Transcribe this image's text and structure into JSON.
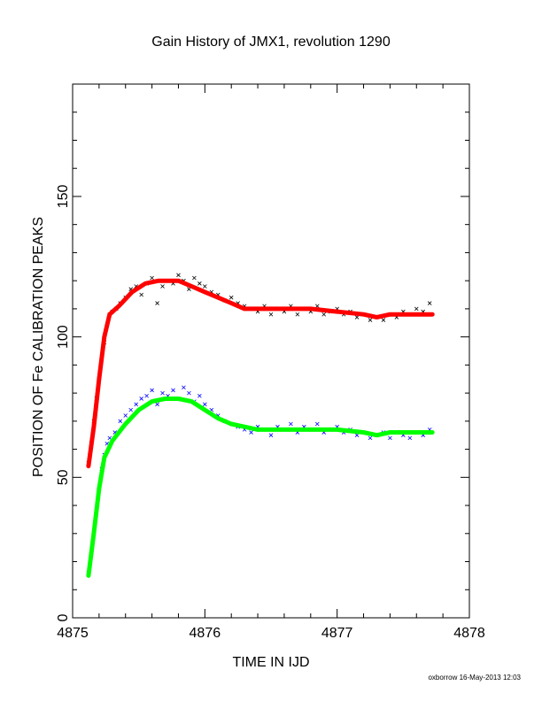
{
  "chart_data": {
    "type": "scatter",
    "title": "Gain History of JMX1, revolution 1290",
    "xlabel": "TIME IN IJD",
    "ylabel": "POSITION OF Fe CALIBRATION PEAKS",
    "xlim": [
      4875,
      4878
    ],
    "ylim": [
      0,
      190
    ],
    "x_ticks": [
      "4875",
      "4876",
      "4877",
      "4878"
    ],
    "y_ticks": [
      "0",
      "50",
      "100",
      "150"
    ],
    "footer": "oxborrow 16-May-2013 12:03",
    "series": [
      {
        "kind": "scatter",
        "color": "#000000",
        "marker": "x",
        "points": [
          [
            4875.12,
            55
          ],
          [
            4875.14,
            62
          ],
          [
            4875.16,
            70
          ],
          [
            4875.18,
            78
          ],
          [
            4875.2,
            85
          ],
          [
            4875.22,
            92
          ],
          [
            4875.24,
            98
          ],
          [
            4875.26,
            104
          ],
          [
            4875.28,
            108
          ],
          [
            4875.3,
            109
          ],
          [
            4875.33,
            110
          ],
          [
            4875.36,
            112
          ],
          [
            4875.4,
            114
          ],
          [
            4875.44,
            117
          ],
          [
            4875.48,
            118
          ],
          [
            4875.52,
            115
          ],
          [
            4875.56,
            119
          ],
          [
            4875.6,
            121
          ],
          [
            4875.64,
            112
          ],
          [
            4875.68,
            118
          ],
          [
            4875.72,
            120
          ],
          [
            4875.76,
            119
          ],
          [
            4875.8,
            122
          ],
          [
            4875.84,
            120
          ],
          [
            4875.88,
            117
          ],
          [
            4875.92,
            121
          ],
          [
            4875.96,
            119
          ],
          [
            4876.0,
            118
          ],
          [
            4876.05,
            116
          ],
          [
            4876.1,
            115
          ],
          [
            4876.15,
            113
          ],
          [
            4876.2,
            114
          ],
          [
            4876.25,
            112
          ],
          [
            4876.3,
            111
          ],
          [
            4876.35,
            110
          ],
          [
            4876.4,
            109
          ],
          [
            4876.45,
            111
          ],
          [
            4876.5,
            108
          ],
          [
            4876.55,
            110
          ],
          [
            4876.6,
            109
          ],
          [
            4876.65,
            111
          ],
          [
            4876.7,
            108
          ],
          [
            4876.75,
            110
          ],
          [
            4876.8,
            109
          ],
          [
            4876.85,
            111
          ],
          [
            4876.9,
            108
          ],
          [
            4876.95,
            109
          ],
          [
            4877.0,
            110
          ],
          [
            4877.05,
            108
          ],
          [
            4877.1,
            109
          ],
          [
            4877.15,
            107
          ],
          [
            4877.2,
            108
          ],
          [
            4877.25,
            106
          ],
          [
            4877.3,
            107
          ],
          [
            4877.35,
            106
          ],
          [
            4877.4,
            108
          ],
          [
            4877.45,
            107
          ],
          [
            4877.5,
            109
          ],
          [
            4877.55,
            108
          ],
          [
            4877.6,
            110
          ],
          [
            4877.65,
            109
          ],
          [
            4877.7,
            112
          ]
        ]
      },
      {
        "kind": "line",
        "color": "#ff0000",
        "width": 5,
        "points": [
          [
            4875.12,
            54
          ],
          [
            4875.16,
            68
          ],
          [
            4875.2,
            85
          ],
          [
            4875.24,
            100
          ],
          [
            4875.28,
            108
          ],
          [
            4875.35,
            111
          ],
          [
            4875.45,
            116
          ],
          [
            4875.55,
            119
          ],
          [
            4875.65,
            120
          ],
          [
            4875.8,
            120
          ],
          [
            4875.9,
            118
          ],
          [
            4876.0,
            116
          ],
          [
            4876.1,
            114
          ],
          [
            4876.2,
            112
          ],
          [
            4876.3,
            110
          ],
          [
            4876.4,
            110
          ],
          [
            4876.6,
            110
          ],
          [
            4876.8,
            110
          ],
          [
            4877.0,
            109
          ],
          [
            4877.2,
            108
          ],
          [
            4877.3,
            107
          ],
          [
            4877.4,
            108
          ],
          [
            4877.6,
            108
          ],
          [
            4877.72,
            108
          ]
        ]
      },
      {
        "kind": "scatter",
        "color": "#0000ff",
        "marker": "x",
        "points": [
          [
            4875.12,
            16
          ],
          [
            4875.14,
            22
          ],
          [
            4875.16,
            30
          ],
          [
            4875.18,
            38
          ],
          [
            4875.2,
            46
          ],
          [
            4875.22,
            53
          ],
          [
            4875.24,
            58
          ],
          [
            4875.26,
            62
          ],
          [
            4875.28,
            64
          ],
          [
            4875.32,
            66
          ],
          [
            4875.36,
            70
          ],
          [
            4875.4,
            72
          ],
          [
            4875.44,
            74
          ],
          [
            4875.48,
            76
          ],
          [
            4875.52,
            78
          ],
          [
            4875.56,
            79
          ],
          [
            4875.6,
            81
          ],
          [
            4875.64,
            76
          ],
          [
            4875.68,
            80
          ],
          [
            4875.72,
            79
          ],
          [
            4875.76,
            81
          ],
          [
            4875.8,
            78
          ],
          [
            4875.84,
            82
          ],
          [
            4875.88,
            80
          ],
          [
            4875.92,
            77
          ],
          [
            4875.96,
            79
          ],
          [
            4876.0,
            76
          ],
          [
            4876.05,
            74
          ],
          [
            4876.1,
            72
          ],
          [
            4876.15,
            70
          ],
          [
            4876.2,
            69
          ],
          [
            4876.25,
            68
          ],
          [
            4876.3,
            67
          ],
          [
            4876.35,
            66
          ],
          [
            4876.4,
            68
          ],
          [
            4876.45,
            67
          ],
          [
            4876.5,
            65
          ],
          [
            4876.55,
            68
          ],
          [
            4876.6,
            67
          ],
          [
            4876.65,
            69
          ],
          [
            4876.7,
            66
          ],
          [
            4876.75,
            68
          ],
          [
            4876.8,
            67
          ],
          [
            4876.85,
            69
          ],
          [
            4876.9,
            66
          ],
          [
            4876.95,
            67
          ],
          [
            4877.0,
            68
          ],
          [
            4877.05,
            66
          ],
          [
            4877.1,
            67
          ],
          [
            4877.15,
            65
          ],
          [
            4877.2,
            66
          ],
          [
            4877.25,
            64
          ],
          [
            4877.3,
            65
          ],
          [
            4877.35,
            66
          ],
          [
            4877.4,
            64
          ],
          [
            4877.45,
            66
          ],
          [
            4877.5,
            65
          ],
          [
            4877.55,
            64
          ],
          [
            4877.6,
            66
          ],
          [
            4877.65,
            65
          ],
          [
            4877.7,
            67
          ]
        ]
      },
      {
        "kind": "line",
        "color": "#00ff00",
        "width": 5,
        "points": [
          [
            4875.12,
            15
          ],
          [
            4875.16,
            30
          ],
          [
            4875.2,
            46
          ],
          [
            4875.24,
            57
          ],
          [
            4875.3,
            63
          ],
          [
            4875.4,
            69
          ],
          [
            4875.5,
            74
          ],
          [
            4875.6,
            77
          ],
          [
            4875.7,
            78
          ],
          [
            4875.8,
            78
          ],
          [
            4875.9,
            77
          ],
          [
            4876.0,
            74
          ],
          [
            4876.1,
            71
          ],
          [
            4876.2,
            69
          ],
          [
            4876.3,
            68
          ],
          [
            4876.4,
            67
          ],
          [
            4876.6,
            67
          ],
          [
            4876.8,
            67
          ],
          [
            4877.0,
            67
          ],
          [
            4877.2,
            66
          ],
          [
            4877.3,
            65
          ],
          [
            4877.4,
            66
          ],
          [
            4877.6,
            66
          ],
          [
            4877.72,
            66
          ]
        ]
      }
    ]
  }
}
